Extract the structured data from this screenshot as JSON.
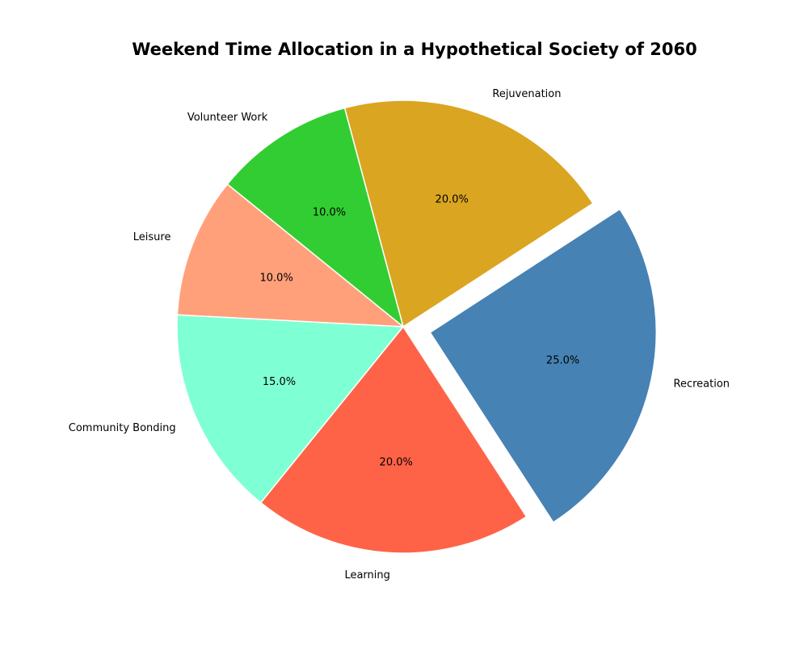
{
  "chart_data": {
    "type": "pie",
    "title": "Weekend Time Allocation in a Hypothetical Society of 2060",
    "categories": [
      "Recreation",
      "Rejuvenation",
      "Volunteer Work",
      "Leisure",
      "Community Bonding",
      "Learning"
    ],
    "values": [
      25.0,
      20.0,
      10.0,
      10.0,
      15.0,
      20.0
    ],
    "percent_labels": [
      "25.0%",
      "20.0%",
      "10.0%",
      "10.0%",
      "15.0%",
      "20.0%"
    ],
    "colors": [
      "#4682B4",
      "#DAA520",
      "#32CD32",
      "#FFA07A",
      "#7FFFD4",
      "#FF6347"
    ],
    "exploded": [
      "Recreation"
    ],
    "legend": "none"
  }
}
